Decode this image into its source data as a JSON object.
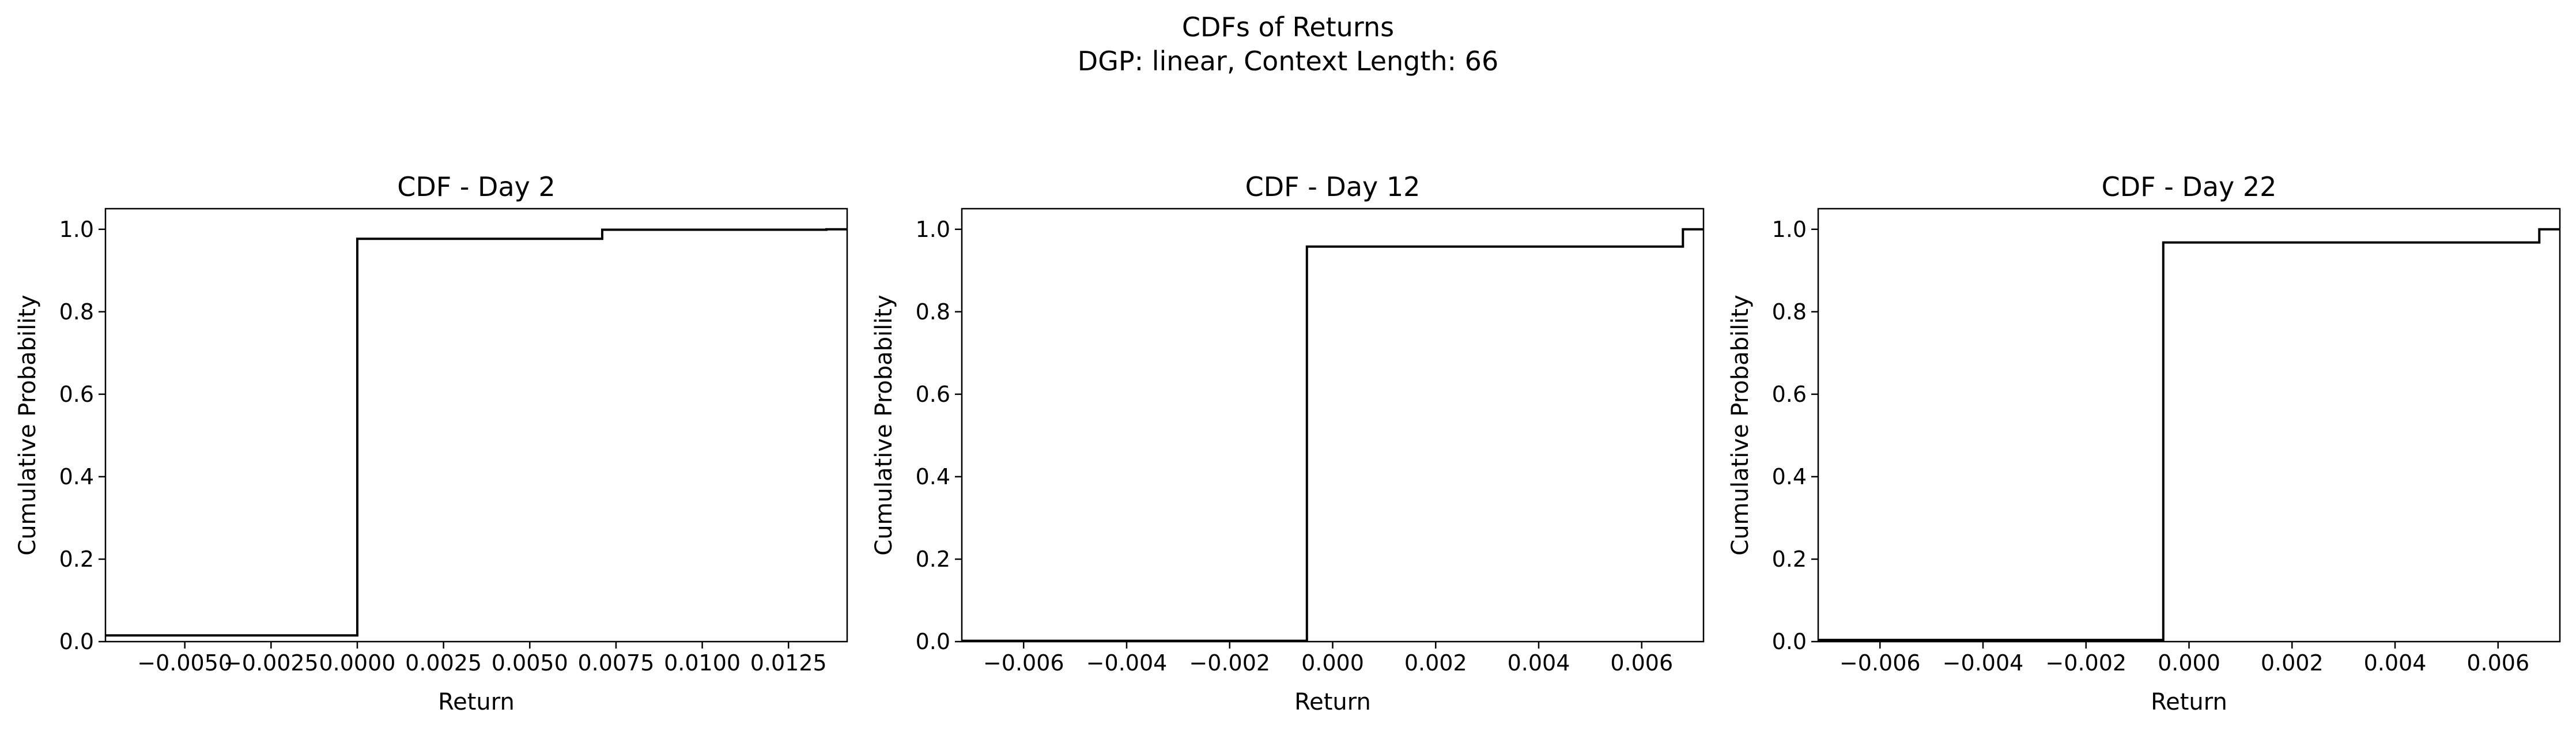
{
  "figure": {
    "title": "CDFs of Returns",
    "subtitle": "DGP: linear, Context Length: 66"
  },
  "chart_data": [
    {
      "type": "line",
      "step": true,
      "title": "CDF - Day 2",
      "xlabel": "Return",
      "ylabel": "Cumulative Probability",
      "xlim": [
        -0.0073,
        0.0142
      ],
      "ylim": [
        0.0,
        1.05
      ],
      "xticks": [
        -0.005,
        -0.0025,
        0.0,
        0.0025,
        0.005,
        0.0075,
        0.01,
        0.0125
      ],
      "xtick_labels": [
        "−0.0050",
        "−0.0025",
        "0.0000",
        "0.0025",
        "0.0050",
        "0.0075",
        "0.0100",
        "0.0125"
      ],
      "yticks": [
        0.0,
        0.2,
        0.4,
        0.6,
        0.8,
        1.0
      ],
      "ytick_labels": [
        "0.0",
        "0.2",
        "0.4",
        "0.6",
        "0.8",
        "1.0"
      ],
      "grid": false,
      "line_color": "#000000",
      "points": [
        [
          -0.0073,
          0.015
        ],
        [
          0.0,
          0.015
        ],
        [
          0.0,
          0.977
        ],
        [
          0.0071,
          0.977
        ],
        [
          0.0071,
          0.999
        ],
        [
          0.0136,
          0.999
        ],
        [
          0.0136,
          1.0
        ],
        [
          0.0142,
          1.0
        ]
      ]
    },
    {
      "type": "line",
      "step": true,
      "title": "CDF - Day 12",
      "xlabel": "Return",
      "ylabel": "Cumulative Probability",
      "xlim": [
        -0.0072,
        0.0072
      ],
      "ylim": [
        0.0,
        1.05
      ],
      "xticks": [
        -0.006,
        -0.004,
        -0.002,
        0.0,
        0.002,
        0.004,
        0.006
      ],
      "xtick_labels": [
        "−0.006",
        "−0.004",
        "−0.002",
        "0.000",
        "0.002",
        "0.004",
        "0.006"
      ],
      "yticks": [
        0.0,
        0.2,
        0.4,
        0.6,
        0.8,
        1.0
      ],
      "ytick_labels": [
        "0.0",
        "0.2",
        "0.4",
        "0.6",
        "0.8",
        "1.0"
      ],
      "grid": false,
      "line_color": "#000000",
      "points": [
        [
          -0.0072,
          0.002
        ],
        [
          -0.0005,
          0.002
        ],
        [
          -0.0005,
          0.958
        ],
        [
          0.0068,
          0.958
        ],
        [
          0.0068,
          1.0
        ],
        [
          0.0072,
          1.0
        ]
      ]
    },
    {
      "type": "line",
      "step": true,
      "title": "CDF - Day 22",
      "xlabel": "Return",
      "ylabel": "Cumulative Probability",
      "xlim": [
        -0.0072,
        0.0072
      ],
      "ylim": [
        0.0,
        1.05
      ],
      "xticks": [
        -0.006,
        -0.004,
        -0.002,
        0.0,
        0.002,
        0.004,
        0.006
      ],
      "xtick_labels": [
        "−0.006",
        "−0.004",
        "−0.002",
        "0.000",
        "0.002",
        "0.004",
        "0.006"
      ],
      "yticks": [
        0.0,
        0.2,
        0.4,
        0.6,
        0.8,
        1.0
      ],
      "ytick_labels": [
        "0.0",
        "0.2",
        "0.4",
        "0.6",
        "0.8",
        "1.0"
      ],
      "grid": false,
      "line_color": "#000000",
      "points": [
        [
          -0.0072,
          0.004
        ],
        [
          -0.0005,
          0.004
        ],
        [
          -0.0005,
          0.968
        ],
        [
          0.0068,
          0.968
        ],
        [
          0.0068,
          1.0
        ],
        [
          0.0072,
          1.0
        ]
      ]
    }
  ]
}
